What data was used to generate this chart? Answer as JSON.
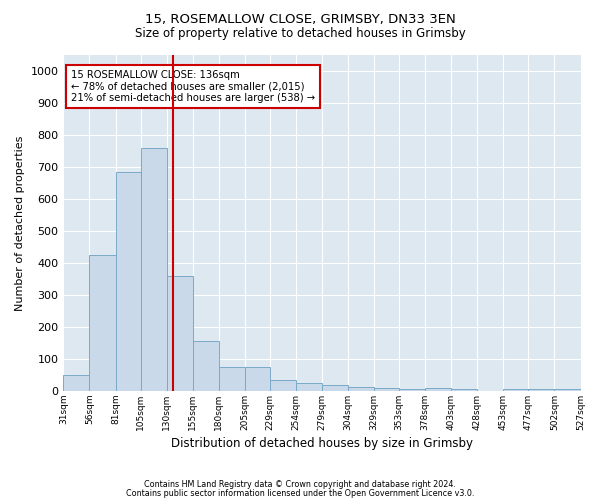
{
  "title1": "15, ROSEMALLOW CLOSE, GRIMSBY, DN33 3EN",
  "title2": "Size of property relative to detached houses in Grimsby",
  "xlabel": "Distribution of detached houses by size in Grimsby",
  "ylabel": "Number of detached properties",
  "footnote1": "Contains HM Land Registry data © Crown copyright and database right 2024.",
  "footnote2": "Contains public sector information licensed under the Open Government Licence v3.0.",
  "annotation_line1": "15 ROSEMALLOW CLOSE: 136sqm",
  "annotation_line2": "← 78% of detached houses are smaller (2,015)",
  "annotation_line3": "21% of semi-detached houses are larger (538) →",
  "bar_edges": [
    31,
    56,
    81,
    105,
    130,
    155,
    180,
    205,
    229,
    254,
    279,
    304,
    329,
    353,
    378,
    403,
    428,
    453,
    477,
    502,
    527
  ],
  "bar_heights": [
    50,
    425,
    685,
    760,
    360,
    155,
    75,
    75,
    35,
    25,
    20,
    12,
    10,
    7,
    10,
    5,
    0,
    5,
    5,
    5
  ],
  "bar_color": "#c9d9ea",
  "bar_edge_color": "#7aaac8",
  "vline_color": "#cc0000",
  "vline_x": 136,
  "annotation_box_color": "#cc0000",
  "background_color": "#dde8f0",
  "ylim": [
    0,
    1050
  ],
  "yticks": [
    0,
    100,
    200,
    300,
    400,
    500,
    600,
    700,
    800,
    900,
    1000
  ],
  "x_labels": [
    "31sqm",
    "56sqm",
    "81sqm",
    "105sqm",
    "130sqm",
    "155sqm",
    "180sqm",
    "205sqm",
    "229sqm",
    "254sqm",
    "279sqm",
    "304sqm",
    "329sqm",
    "353sqm",
    "378sqm",
    "403sqm",
    "428sqm",
    "453sqm",
    "477sqm",
    "502sqm",
    "527sqm"
  ]
}
